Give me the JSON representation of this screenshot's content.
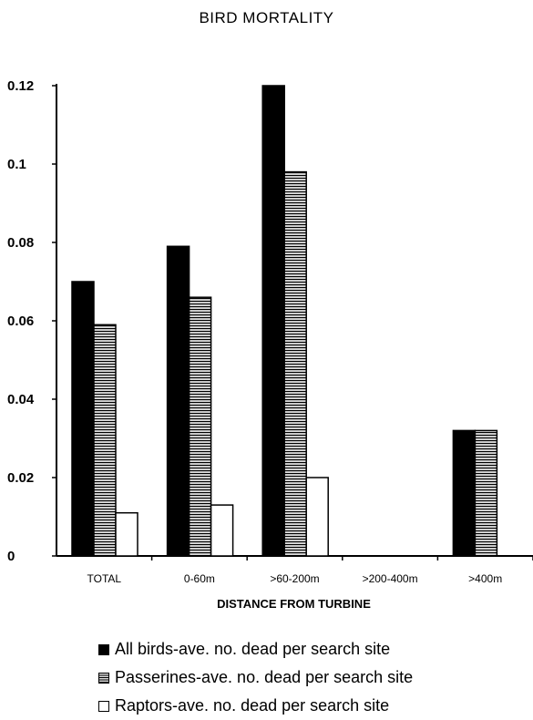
{
  "chart_data": {
    "type": "bar",
    "title": "BIRD MORTALITY",
    "xlabel": "DISTANCE FROM TURBINE",
    "ylabel": "",
    "categories": [
      "TOTAL",
      "0-60m",
      ">60-200m",
      ">200-400m",
      ">400m"
    ],
    "yticks": [
      "0",
      "0.02",
      "0.04",
      "0.06",
      "0.08",
      "0.1",
      "0.12"
    ],
    "ylim": [
      0,
      0.12
    ],
    "series": [
      {
        "name": "All birds-ave. no. dead per search site",
        "values": [
          0.07,
          0.079,
          0.12,
          0,
          0.032
        ],
        "color": "#000000"
      },
      {
        "name": "Passerines-ave. no. dead per search site",
        "values": [
          0.059,
          0.066,
          0.098,
          0,
          0.032
        ],
        "color": "hatched-gray"
      },
      {
        "name": "Raptors-ave. no. dead per search site",
        "values": [
          0.011,
          0.013,
          0.02,
          0,
          0
        ],
        "color": "#ffffff"
      }
    ],
    "grid": false,
    "legend_position": "bottom"
  }
}
